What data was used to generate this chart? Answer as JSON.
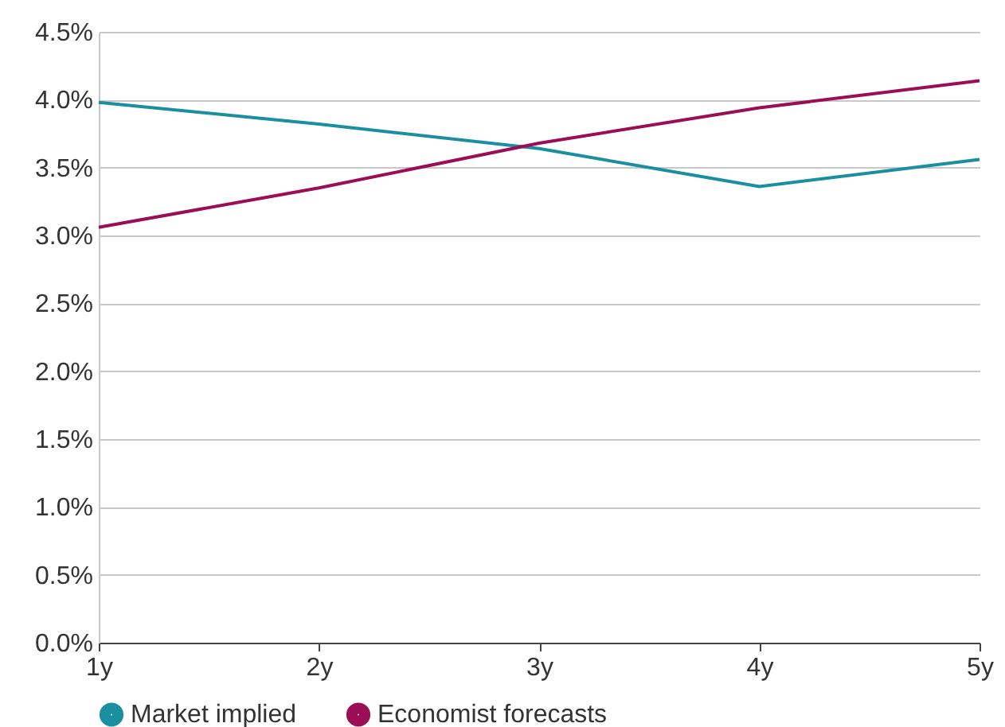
{
  "chart_data": {
    "type": "line",
    "categories": [
      "1y",
      "2y",
      "3y",
      "4y",
      "5y"
    ],
    "series": [
      {
        "name": "Market implied",
        "color": "#1a8fa0",
        "values": [
          3.98,
          3.82,
          3.64,
          3.36,
          3.56
        ]
      },
      {
        "name": "Economist forecasts",
        "color": "#9b0d55",
        "values": [
          3.06,
          3.35,
          3.68,
          3.94,
          4.14
        ]
      }
    ],
    "ylim": [
      0,
      4.5
    ],
    "yticks": [
      {
        "value": 0,
        "label": "0.0%"
      },
      {
        "value": 0.5,
        "label": "0.5%"
      },
      {
        "value": 1,
        "label": "1.0%"
      },
      {
        "value": 1.5,
        "label": "1.5%"
      },
      {
        "value": 2,
        "label": "2.0%"
      },
      {
        "value": 2.5,
        "label": "2.5%"
      },
      {
        "value": 3,
        "label": "3.0%"
      },
      {
        "value": 3.5,
        "label": "3.5%"
      },
      {
        "value": 4,
        "label": "4.0%"
      },
      {
        "value": 4.5,
        "label": "4.5%"
      }
    ],
    "grid": "y",
    "legend": "bottom",
    "marker": "none",
    "line_style": "solid"
  }
}
